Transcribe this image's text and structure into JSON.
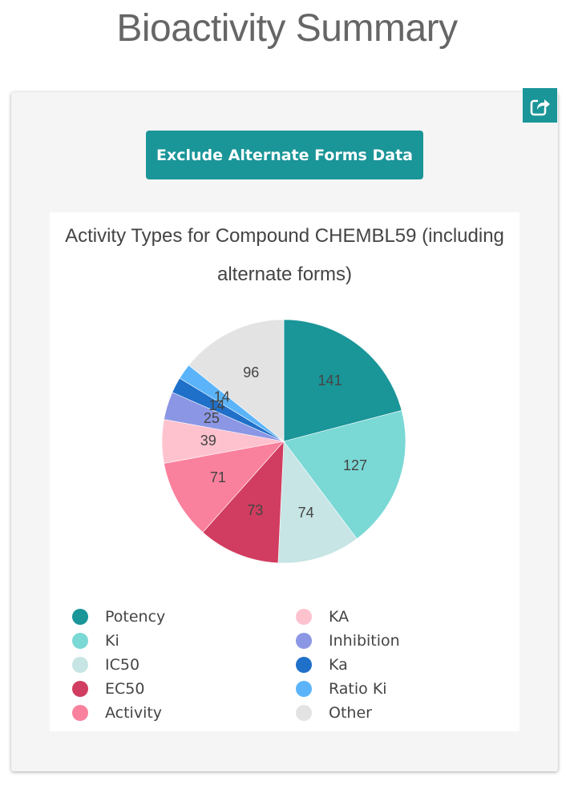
{
  "page": {
    "title": "Bioactivity Summary"
  },
  "toolbar": {
    "share_icon": "share-icon",
    "exclude_label": "Exclude Alternate Forms Data"
  },
  "chart_data": {
    "type": "pie",
    "title": "Activity Types for Compound CHEMBL59 (including alternate forms)",
    "legend_position": "bottom",
    "slices": [
      {
        "label": "Potency",
        "value": 141,
        "color": "#1a9598"
      },
      {
        "label": "Ki",
        "value": 127,
        "color": "#7ad8d5"
      },
      {
        "label": "IC50",
        "value": 74,
        "color": "#c6e5e4"
      },
      {
        "label": "EC50",
        "value": 73,
        "color": "#d13d60"
      },
      {
        "label": "Activity",
        "value": 71,
        "color": "#fa819d"
      },
      {
        "label": "KA",
        "value": 39,
        "color": "#fec2cf"
      },
      {
        "label": "Inhibition",
        "value": 25,
        "color": "#8b97e4"
      },
      {
        "label": "Ka",
        "value": 14,
        "color": "#1f70c9"
      },
      {
        "label": "Ratio Ki",
        "value": 14,
        "color": "#5bb4f9"
      },
      {
        "label": "Other",
        "value": 96,
        "color": "#e3e3e3"
      }
    ]
  }
}
